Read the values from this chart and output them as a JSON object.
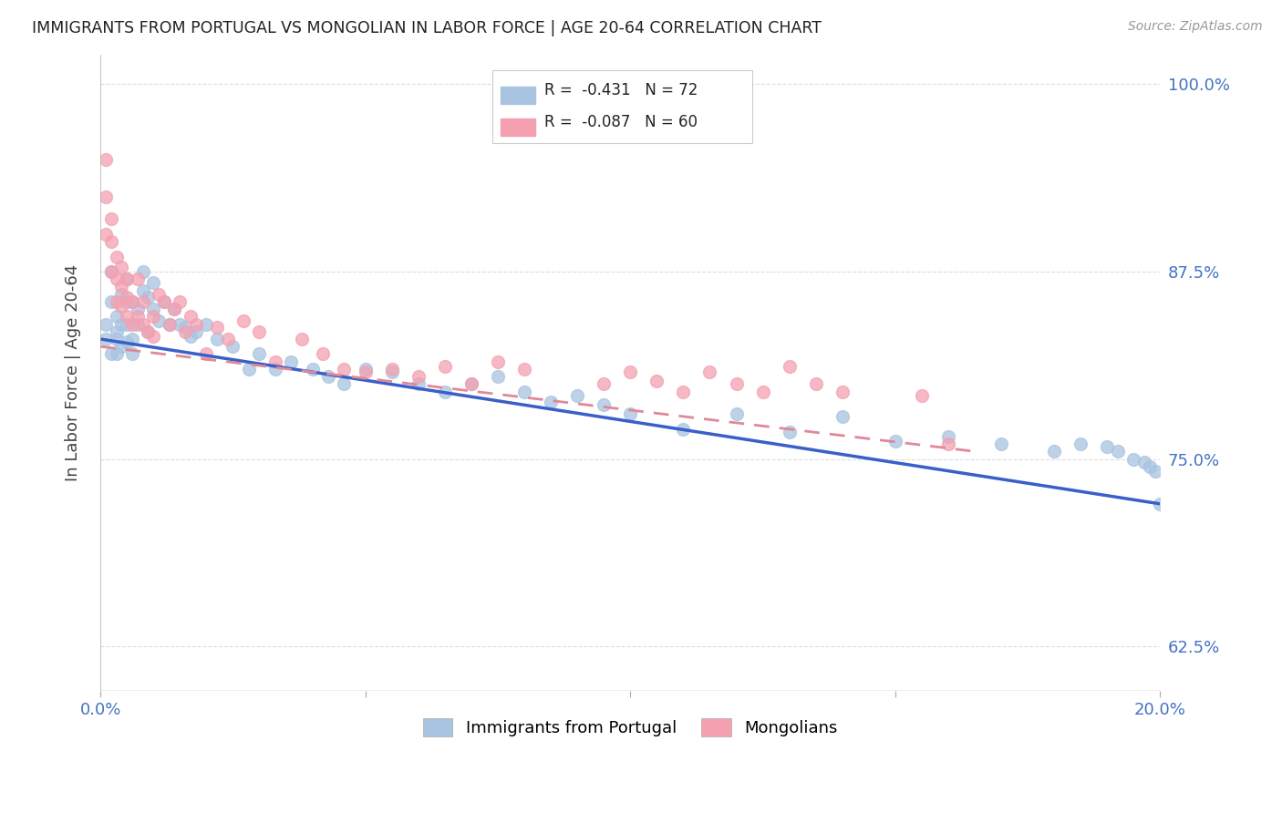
{
  "title": "IMMIGRANTS FROM PORTUGAL VS MONGOLIAN IN LABOR FORCE | AGE 20-64 CORRELATION CHART",
  "source": "Source: ZipAtlas.com",
  "ylabel": "In Labor Force | Age 20-64",
  "xlim": [
    0.0,
    0.2
  ],
  "ylim": [
    0.595,
    1.02
  ],
  "xticks": [
    0.0,
    0.05,
    0.1,
    0.15,
    0.2
  ],
  "xticklabels": [
    "0.0%",
    "",
    "",
    "",
    "20.0%"
  ],
  "yticks": [
    0.625,
    0.75,
    0.875,
    1.0
  ],
  "yticklabels": [
    "62.5%",
    "75.0%",
    "87.5%",
    "100.0%"
  ],
  "portugal_R": -0.431,
  "portugal_N": 72,
  "mongolian_R": -0.087,
  "mongolian_N": 60,
  "portugal_color": "#a8c4e0",
  "mongolian_color": "#f4a0b0",
  "portugal_line_color": "#3a5fc8",
  "mongolian_line_color": "#e08898",
  "legend_label_portugal": "Immigrants from Portugal",
  "legend_label_mongolian": "Mongolians",
  "background_color": "#ffffff",
  "grid_color": "#dddddd",
  "axis_label_color": "#4472c4",
  "portugal_x": [
    0.001,
    0.001,
    0.002,
    0.002,
    0.002,
    0.003,
    0.003,
    0.003,
    0.003,
    0.004,
    0.004,
    0.004,
    0.005,
    0.005,
    0.005,
    0.005,
    0.006,
    0.006,
    0.006,
    0.007,
    0.007,
    0.008,
    0.008,
    0.009,
    0.009,
    0.01,
    0.01,
    0.011,
    0.012,
    0.013,
    0.014,
    0.015,
    0.016,
    0.017,
    0.018,
    0.02,
    0.022,
    0.025,
    0.028,
    0.03,
    0.033,
    0.036,
    0.04,
    0.043,
    0.046,
    0.05,
    0.055,
    0.06,
    0.065,
    0.07,
    0.075,
    0.08,
    0.085,
    0.09,
    0.095,
    0.1,
    0.11,
    0.12,
    0.13,
    0.14,
    0.15,
    0.16,
    0.17,
    0.18,
    0.185,
    0.19,
    0.192,
    0.195,
    0.197,
    0.198,
    0.199,
    0.2
  ],
  "portugal_y": [
    0.83,
    0.84,
    0.855,
    0.875,
    0.82,
    0.845,
    0.83,
    0.82,
    0.835,
    0.84,
    0.825,
    0.86,
    0.87,
    0.855,
    0.84,
    0.828,
    0.855,
    0.83,
    0.82,
    0.85,
    0.84,
    0.862,
    0.875,
    0.858,
    0.835,
    0.868,
    0.85,
    0.842,
    0.855,
    0.84,
    0.85,
    0.84,
    0.838,
    0.832,
    0.835,
    0.84,
    0.83,
    0.825,
    0.81,
    0.82,
    0.81,
    0.815,
    0.81,
    0.805,
    0.8,
    0.81,
    0.808,
    0.8,
    0.795,
    0.8,
    0.805,
    0.795,
    0.788,
    0.792,
    0.786,
    0.78,
    0.77,
    0.78,
    0.768,
    0.778,
    0.762,
    0.765,
    0.76,
    0.755,
    0.76,
    0.758,
    0.755,
    0.75,
    0.748,
    0.745,
    0.742,
    0.72
  ],
  "mongolian_x": [
    0.001,
    0.001,
    0.001,
    0.002,
    0.002,
    0.002,
    0.003,
    0.003,
    0.003,
    0.004,
    0.004,
    0.004,
    0.005,
    0.005,
    0.005,
    0.006,
    0.006,
    0.007,
    0.007,
    0.008,
    0.008,
    0.009,
    0.01,
    0.01,
    0.011,
    0.012,
    0.013,
    0.014,
    0.015,
    0.016,
    0.017,
    0.018,
    0.02,
    0.022,
    0.024,
    0.027,
    0.03,
    0.033,
    0.038,
    0.042,
    0.046,
    0.05,
    0.055,
    0.06,
    0.065,
    0.07,
    0.075,
    0.08,
    0.095,
    0.1,
    0.105,
    0.11,
    0.115,
    0.12,
    0.125,
    0.13,
    0.135,
    0.14,
    0.155,
    0.16
  ],
  "mongolian_y": [
    0.95,
    0.925,
    0.9,
    0.91,
    0.895,
    0.875,
    0.885,
    0.87,
    0.855,
    0.878,
    0.865,
    0.852,
    0.858,
    0.87,
    0.845,
    0.855,
    0.84,
    0.845,
    0.87,
    0.84,
    0.855,
    0.835,
    0.845,
    0.832,
    0.86,
    0.855,
    0.84,
    0.85,
    0.855,
    0.835,
    0.845,
    0.84,
    0.82,
    0.838,
    0.83,
    0.842,
    0.835,
    0.815,
    0.83,
    0.82,
    0.81,
    0.808,
    0.81,
    0.805,
    0.812,
    0.8,
    0.815,
    0.81,
    0.8,
    0.808,
    0.802,
    0.795,
    0.808,
    0.8,
    0.795,
    0.812,
    0.8,
    0.795,
    0.792,
    0.76
  ],
  "port_line_x": [
    0.0,
    0.2
  ],
  "port_line_y": [
    0.83,
    0.72
  ],
  "mong_line_x": [
    0.0,
    0.165
  ],
  "mong_line_y": [
    0.825,
    0.755
  ]
}
